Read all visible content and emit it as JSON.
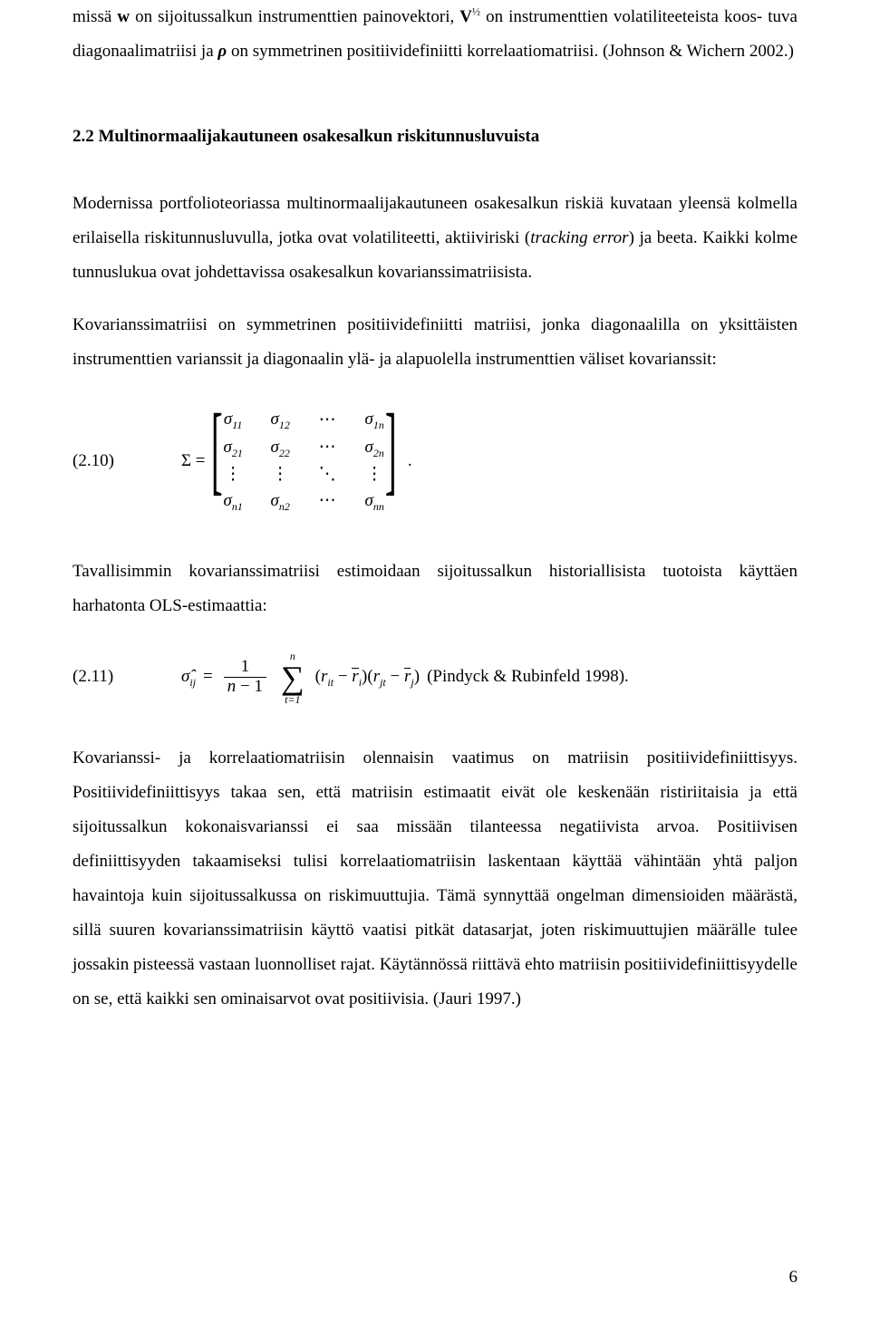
{
  "para1": {
    "l1a": "missä ",
    "l1b": "w",
    "l1c": " on sijoitussalkun instrumenttien painovektori, ",
    "l1d": "V",
    "l1e": "½",
    "l1f": " on instrumenttien volatiliteeteista koos-",
    "l2a": "tuva diagonaalimatriisi ja ",
    "l2b": "ρ",
    "l2c": " on symmetrinen positiividefiniitti korrelaatiomatriisi. (Johnson & Wichern 2002.)"
  },
  "heading": "2.2 Multinormaalijakautuneen osakesalkun riskitunnusluvuista",
  "para2a": "Modernissa portfolioteoriassa multinormaalijakautuneen osakesalkun riskiä kuvataan yleensä kolmella erilaisella riskitunnusluvulla, jotka ovat volatiliteetti, aktiiviriski (",
  "para2b": "tracking error",
  "para2c": ") ja beeta. Kaikki kolme tunnuslukua ovat johdettavissa osakesalkun kovarianssimatriisista.",
  "para3": "Kovarianssimatriisi on symmetrinen positiividefiniitti matriisi, jonka diagonaalilla on yksittäisten instrumenttien varianssit ja diagonaalin ylä- ja alapuolella instrumenttien väliset kovarianssit:",
  "eq210": {
    "label": "(2.10)",
    "sigma": "Σ =",
    "m": {
      "s": "σ",
      "r1": [
        "11",
        "12",
        "⋯",
        "1n"
      ],
      "r2": [
        "21",
        "22",
        "⋯",
        "2n"
      ],
      "vd": "⋮",
      "dd": "⋱",
      "rn": [
        "n1",
        "n2",
        "⋯",
        "nn"
      ]
    },
    "period": "."
  },
  "para4": "Tavallisimmin kovarianssimatriisi estimoidaan sijoitussalkun historiallisista tuotoista käyttäen harhatonta OLS-estimaattia:",
  "eq211": {
    "label": "(2.11)",
    "hat_sigma": "σ̂",
    "ij": "ij",
    "eq": " = ",
    "num1": "1",
    "den_n": "n",
    "den_m1": " − 1",
    "sum_top": "n",
    "sum_sym": "∑",
    "sum_bot": "t=1",
    "open": "(",
    "r": "r",
    "it": "it",
    "minus": " − ",
    "ri": "i",
    "close_open": ")(",
    "jt": "jt",
    "rj": "j",
    "close": ")",
    "cite": "   (Pindyck & Rubinfeld 1998)."
  },
  "para5": "Kovarianssi- ja korrelaatiomatriisin olennaisin vaatimus on matriisin positiividefiniittisyys. Positiividefiniittisyys takaa sen, että matriisin estimaatit eivät ole keskenään ristiriitaisia ja että sijoitussalkun kokonaisvarianssi ei saa missään tilanteessa negatiivista arvoa. Positiivisen definiittisyyden takaamiseksi tulisi korrelaatiomatriisin laskentaan käyttää vähintään yhtä paljon havaintoja kuin sijoitussalkussa on riskimuuttujia. Tämä synnyttää ongelman dimensioiden määrästä, sillä suuren kovarianssimatriisin käyttö vaatisi pitkät datasarjat, joten riskimuuttujien määrälle tulee jossakin pisteessä vastaan luonnolliset rajat. Käytännössä riittävä ehto matriisin positiividefiniittisyydelle on se, että kaikki sen ominaisarvot ovat positiivisia. (Jauri 1997.)",
  "pagenum": "6"
}
